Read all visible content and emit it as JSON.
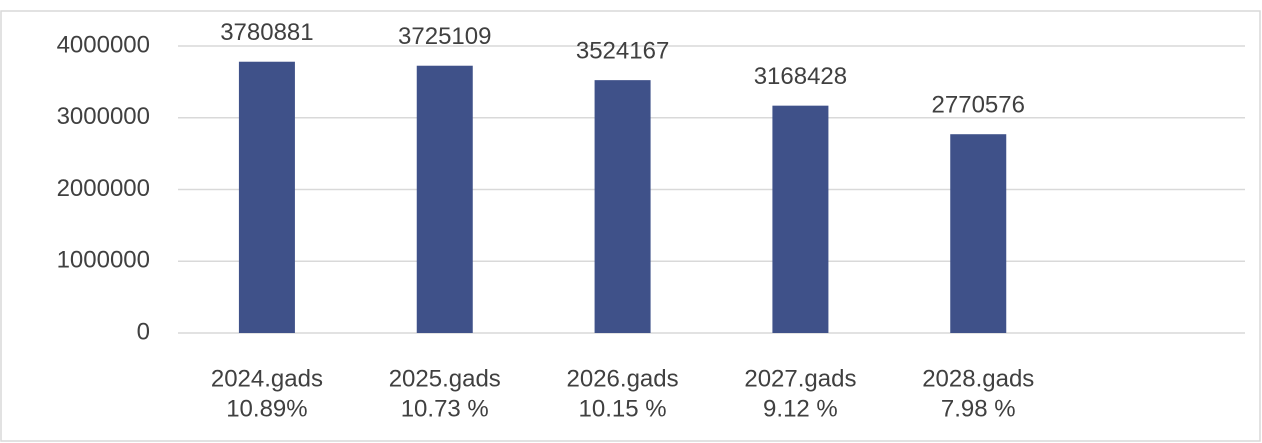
{
  "chart_data": {
    "type": "bar",
    "categories": [
      [
        "2024.gads",
        "10.89%"
      ],
      [
        "2025.gads",
        "10.73 %"
      ],
      [
        "2026.gads",
        "10.15 %"
      ],
      [
        "2027.gads",
        "9.12 %"
      ],
      [
        "2028.gads",
        "7.98 %"
      ]
    ],
    "values": [
      3780881,
      3725109,
      3524167,
      3168428,
      2770576
    ],
    "color": "#3f5189",
    "ylim": [
      0,
      4000000
    ],
    "yticks": [
      0,
      1000000,
      2000000,
      3000000,
      4000000
    ],
    "grid": true
  }
}
